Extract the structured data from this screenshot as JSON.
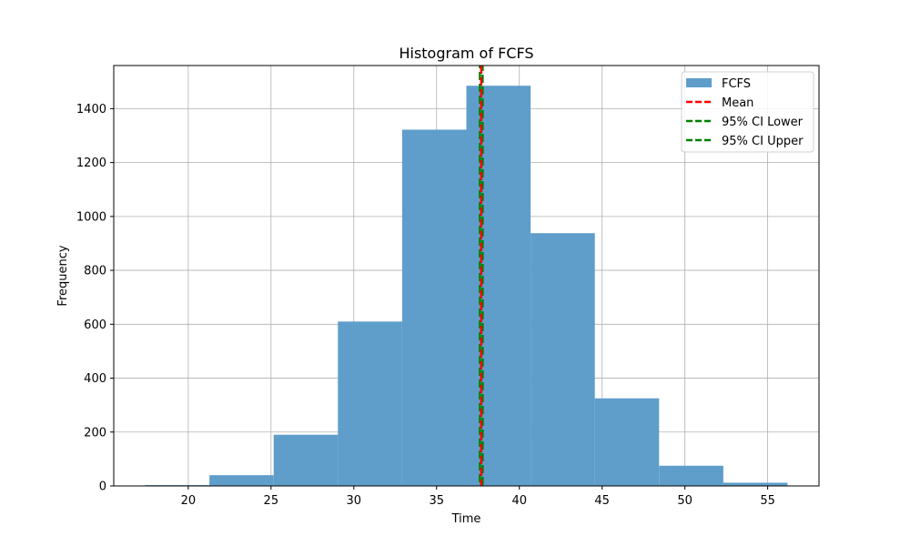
{
  "chart_data": {
    "type": "bar",
    "title": "Histogram of FCFS",
    "xlabel": "Time",
    "ylabel": "Frequency",
    "xlim": [
      15.5,
      58.1
    ],
    "ylim": [
      0,
      1560
    ],
    "grid": true,
    "legend_placement": "top-right",
    "bin_edges": [
      17.4,
      21.28,
      25.16,
      29.04,
      32.92,
      36.8,
      40.68,
      44.56,
      48.44,
      52.32,
      56.2
    ],
    "counts": [
      3,
      40,
      190,
      610,
      1322,
      1485,
      938,
      325,
      75,
      12
    ],
    "xticks": [
      20,
      25,
      30,
      35,
      40,
      45,
      50,
      55
    ],
    "yticks": [
      0,
      200,
      400,
      600,
      800,
      1000,
      1200,
      1400
    ],
    "mean": 37.7,
    "ci_lower": 37.62,
    "ci_upper": 37.78,
    "series": [
      {
        "name": "FCFS",
        "color": "#5f9ecb",
        "kind": "bar"
      },
      {
        "name": "Mean",
        "color": "#ff0000",
        "kind": "dashed-line"
      },
      {
        "name": "95% CI Lower",
        "color": "#008000",
        "kind": "dashed-line"
      },
      {
        "name": "95% CI Upper",
        "color": "#008000",
        "kind": "dashed-line"
      }
    ]
  }
}
